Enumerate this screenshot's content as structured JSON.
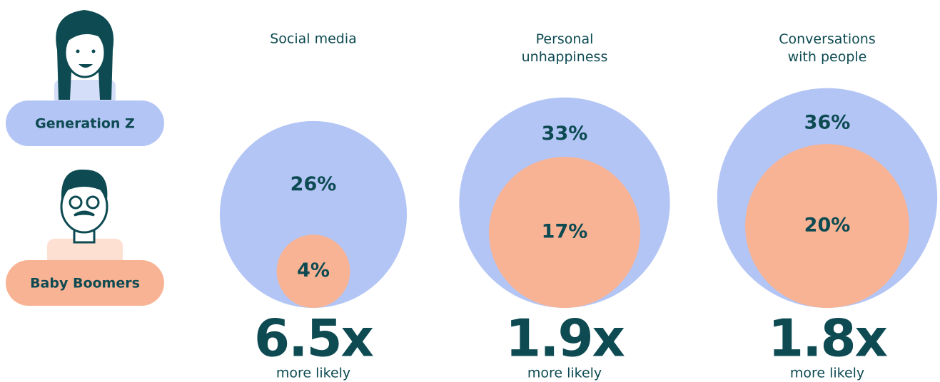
{
  "chart_data": {
    "type": "nested-circles",
    "categories": [
      "Social media",
      "Personal unhappiness",
      "Conversations with people"
    ],
    "series": [
      {
        "name": "Generation Z",
        "color": "#b3c5f5",
        "values": [
          26,
          33,
          36
        ],
        "value_labels": [
          "26%",
          "33%",
          "36%"
        ]
      },
      {
        "name": "Baby Boomers",
        "color": "#f8b394",
        "values": [
          4,
          17,
          20
        ],
        "value_labels": [
          "4%",
          "17%",
          "20%"
        ]
      }
    ],
    "ratios": [
      6.5,
      1.9,
      1.8
    ],
    "ratio_labels": [
      "6.5x",
      "1.9x",
      "1.8x"
    ],
    "ratio_caption": "more likely"
  }
}
